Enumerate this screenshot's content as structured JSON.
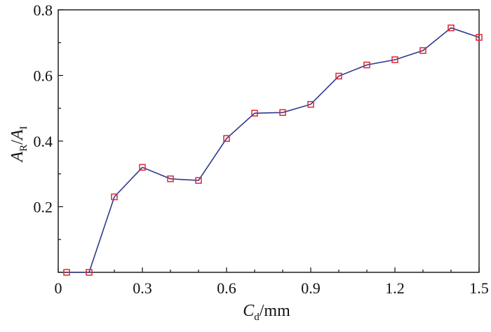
{
  "chart_data": {
    "type": "line",
    "x": [
      0.03,
      0.11,
      0.2,
      0.3,
      0.4,
      0.5,
      0.6,
      0.7,
      0.8,
      0.9,
      1.0,
      1.1,
      1.2,
      1.3,
      1.4,
      1.5
    ],
    "series": [
      {
        "values": [
          0.0,
          0.0,
          0.23,
          0.32,
          0.285,
          0.28,
          0.408,
          0.485,
          0.487,
          0.512,
          0.598,
          0.632,
          0.648,
          0.676,
          0.745,
          0.716
        ]
      }
    ],
    "xlim": [
      0,
      1.5
    ],
    "ylim": [
      0,
      0.8
    ],
    "x_ticks": [
      "0",
      "0.3",
      "0.6",
      "0.9",
      "1.2",
      "1.5"
    ],
    "y_ticks": [
      "0.2",
      "0.4",
      "0.6",
      "0.8"
    ],
    "xlabel": {
      "main": "C",
      "sub": "d",
      "unit": "/mm"
    },
    "ylabel": {
      "num": "A",
      "num_sub": "R",
      "sep": "/",
      "den": "A",
      "den_sub": "I"
    },
    "grid": false,
    "colors": {
      "line": "#2e3a8c",
      "marker": "#e0262e",
      "axis": "#111111"
    }
  }
}
